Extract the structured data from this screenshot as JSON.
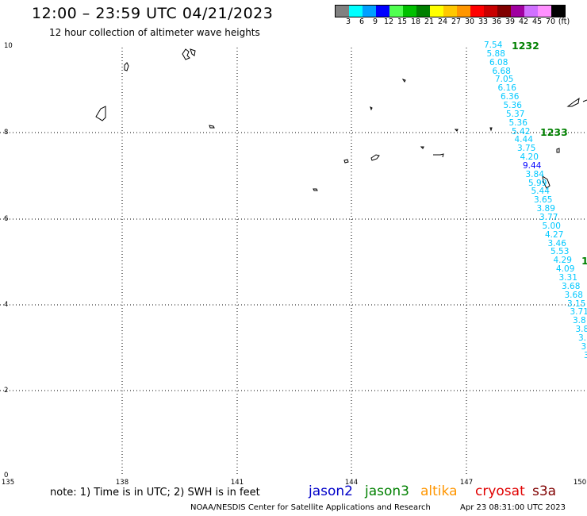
{
  "header": {
    "title": "12:00 – 23:59 UTC 04/21/2023",
    "subtitle": "12 hour collection of altimeter wave heights"
  },
  "colorbar": {
    "colors": [
      "#808080",
      "#00ffff",
      "#00a0ff",
      "#0000ff",
      "#50ff50",
      "#00c000",
      "#008000",
      "#ffff00",
      "#ffc800",
      "#ff9600",
      "#ff0000",
      "#c80000",
      "#800000",
      "#a000a0",
      "#d070ff",
      "#ff90ff",
      "#000000"
    ],
    "labels": [
      "3",
      "6",
      "9",
      "12",
      "15",
      "18",
      "21",
      "24",
      "27",
      "30",
      "33",
      "36",
      "39",
      "42",
      "45",
      "70",
      "(ft)"
    ]
  },
  "map": {
    "y_ticks": [
      "10",
      "8",
      "6",
      "4",
      "2",
      "0"
    ],
    "x_ticks": [
      "135",
      "138",
      "141",
      "144",
      "147",
      "150"
    ],
    "coast_color": "#000000",
    "grid_color": "#000000"
  },
  "passes": [
    {
      "label": "1232",
      "color": "#008000"
    },
    {
      "label": "1233",
      "color": "#008000"
    },
    {
      "label": "1",
      "color": "#008000"
    }
  ],
  "track": {
    "cyan_color": "#00c8ff",
    "blue_color": "#0000ff",
    "values": [
      {
        "v": "7.54",
        "c": "cyan"
      },
      {
        "v": "5.88",
        "c": "cyan"
      },
      {
        "v": "6.08",
        "c": "cyan"
      },
      {
        "v": "6.68",
        "c": "cyan"
      },
      {
        "v": "7.05",
        "c": "cyan"
      },
      {
        "v": "6.16",
        "c": "cyan"
      },
      {
        "v": "6.36",
        "c": "cyan"
      },
      {
        "v": "5.36",
        "c": "cyan"
      },
      {
        "v": "5.37",
        "c": "cyan"
      },
      {
        "v": "5.36",
        "c": "cyan"
      },
      {
        "v": "5.42",
        "c": "cyan"
      },
      {
        "v": "4.44",
        "c": "cyan"
      },
      {
        "v": "3.75",
        "c": "cyan"
      },
      {
        "v": "4.20",
        "c": "cyan"
      },
      {
        "v": "9.44",
        "c": "blue"
      },
      {
        "v": "3.84",
        "c": "cyan"
      },
      {
        "v": "5.99",
        "c": "cyan"
      },
      {
        "v": "5.44",
        "c": "cyan"
      },
      {
        "v": "3.65",
        "c": "cyan"
      },
      {
        "v": "3.89",
        "c": "cyan"
      },
      {
        "v": "3.77",
        "c": "cyan"
      },
      {
        "v": "5.00",
        "c": "cyan"
      },
      {
        "v": "4.27",
        "c": "cyan"
      },
      {
        "v": "3.46",
        "c": "cyan"
      },
      {
        "v": "5.53",
        "c": "cyan"
      },
      {
        "v": "4.29",
        "c": "cyan"
      },
      {
        "v": "4.09",
        "c": "cyan"
      },
      {
        "v": "3.31",
        "c": "cyan"
      },
      {
        "v": "3.68",
        "c": "cyan"
      },
      {
        "v": "3.68",
        "c": "cyan"
      },
      {
        "v": "3.15",
        "c": "cyan"
      },
      {
        "v": "3.71",
        "c": "cyan"
      },
      {
        "v": "3.8",
        "c": "cyan"
      },
      {
        "v": "3.8",
        "c": "cyan"
      },
      {
        "v": "3.",
        "c": "cyan"
      },
      {
        "v": "3.",
        "c": "cyan"
      },
      {
        "v": "3",
        "c": "cyan"
      }
    ]
  },
  "footer": {
    "note": "note:  1) Time is in UTC;  2) SWH is in feet",
    "legend": [
      {
        "label": "jason2",
        "color": "#0000c8"
      },
      {
        "label": "jason3",
        "color": "#008000"
      },
      {
        "label": "altika",
        "color": "#ff9600"
      },
      {
        "label": "cryosat",
        "color": "#e00000"
      },
      {
        "label": "s3a",
        "color": "#800000"
      }
    ],
    "credit": "NOAA/NESDIS Center for Satellite Applications and Research",
    "timestamp": "Apr 23 08:31:00 UTC 2023"
  }
}
